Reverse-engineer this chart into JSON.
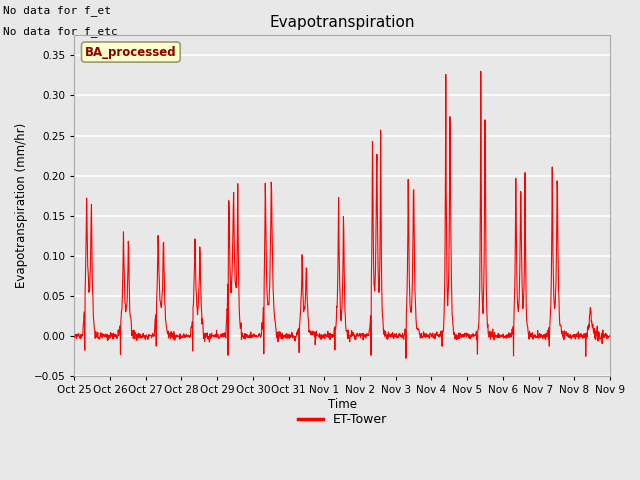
{
  "title": "Evapotranspiration",
  "ylabel": "Evapotranspiration (mm/hr)",
  "xlabel": "Time",
  "ylim": [
    -0.05,
    0.375
  ],
  "line_color": "#ff0000",
  "line_width": 0.8,
  "bg_color": "#e8e8e8",
  "legend_label": "ET-Tower",
  "legend_box_text": "BA_processed",
  "top_left_text1": "No data for f_et",
  "top_left_text2": "No data for f_etc",
  "x_tick_labels": [
    "Oct 25",
    "Oct 26",
    "Oct 27",
    "Oct 28",
    "Oct 29",
    "Oct 30",
    "Oct 31",
    "Nov 1",
    "Nov 2",
    "Nov 3",
    "Nov 4",
    "Nov 5",
    "Nov 6",
    "Nov 7",
    "Nov 8",
    "Nov 9"
  ],
  "n_days": 15,
  "pts_per_day": 96,
  "figwidth": 6.4,
  "figheight": 4.8,
  "dpi": 100
}
